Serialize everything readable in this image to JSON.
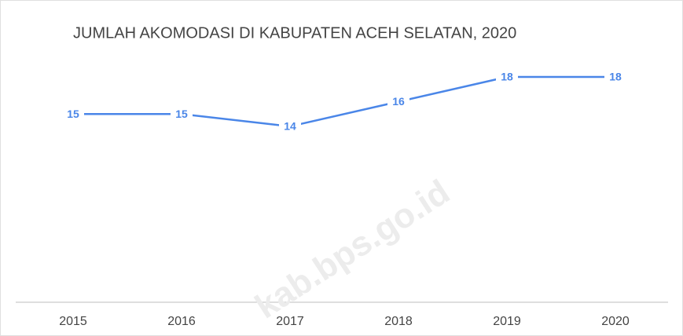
{
  "chart_data": {
    "type": "line",
    "title": "JUMLAH AKOMODASI DI KABUPATEN ACEH SELATAN, 2020",
    "categories": [
      "2015",
      "2016",
      "2017",
      "2018",
      "2019",
      "2020"
    ],
    "series": [
      {
        "name": "Jumlah Akomodasi",
        "color": "#4a86e8",
        "values": [
          15,
          15,
          14,
          16,
          18,
          18
        ]
      }
    ],
    "ylim": [
      0,
      20
    ],
    "watermark": "kab.bps.go.id"
  }
}
